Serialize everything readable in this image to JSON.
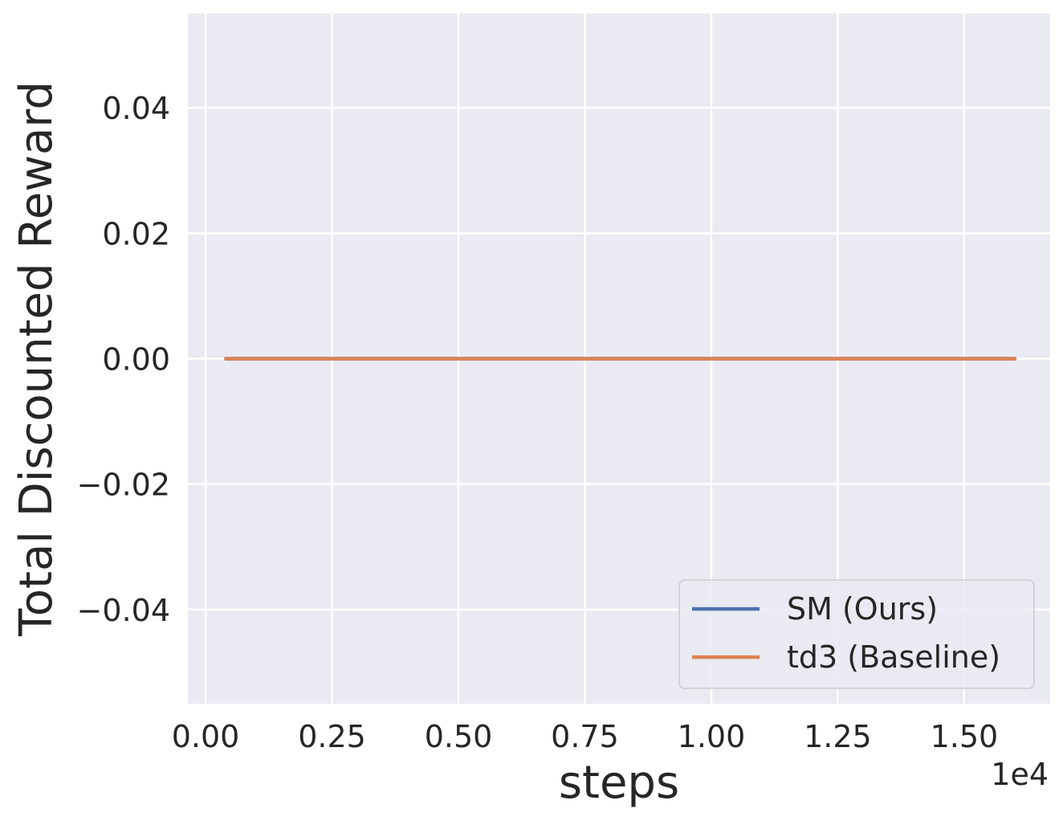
{
  "chart_data": {
    "type": "line",
    "xlabel": "steps",
    "ylabel": "Total Discounted Reward",
    "x_offset_label": "1e4",
    "xlim": [
      -0.035,
      1.67
    ],
    "ylim": [
      -0.055,
      0.055
    ],
    "x_ticks": [
      0.0,
      0.25,
      0.5,
      0.75,
      1.0,
      1.25,
      1.5
    ],
    "x_tick_labels": [
      "0.00",
      "0.25",
      "0.50",
      "0.75",
      "1.00",
      "1.25",
      "1.50"
    ],
    "y_ticks": [
      -0.04,
      -0.02,
      0.0,
      0.02,
      0.04
    ],
    "y_tick_labels": [
      "−0.04",
      "−0.02",
      "0.00",
      "0.02",
      "0.04"
    ],
    "grid": true,
    "legend_position": "lower-right",
    "series": [
      {
        "name": "SM (Ours)",
        "color": "#4c72b0",
        "x": [
          0.04,
          1.6
        ],
        "y": [
          0.0,
          0.0
        ]
      },
      {
        "name": "td3 (Baseline)",
        "color": "#dd8452",
        "x": [
          0.04,
          1.6
        ],
        "y": [
          0.0,
          0.0
        ]
      }
    ]
  }
}
